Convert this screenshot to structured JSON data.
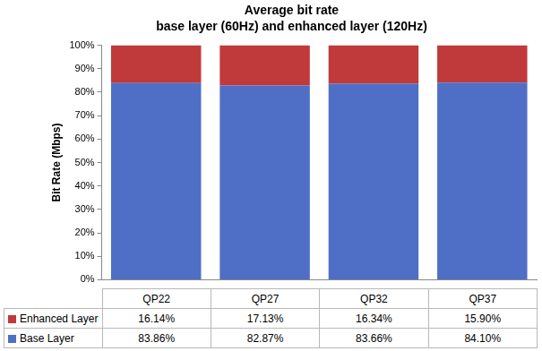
{
  "chart_data": {
    "type": "bar",
    "title": "Average bit rate",
    "subtitle": "base layer (60Hz) and enhanced layer (120Hz)",
    "y_label": "Bit Rate (Mbps)",
    "categories": [
      "QP22",
      "QP27",
      "QP32",
      "QP37"
    ],
    "stacked": true,
    "grid": false,
    "series": [
      {
        "name": "Enhanced Layer",
        "color": "#c0393b",
        "values": [
          16.14,
          17.13,
          16.34,
          15.9
        ],
        "value_labels": [
          "16.14%",
          "17.13%",
          "16.34%",
          "15.90%"
        ]
      },
      {
        "name": "Base Layer",
        "color": "#4f6fc6",
        "values": [
          83.86,
          82.87,
          83.66,
          84.1
        ],
        "value_labels": [
          "83.86%",
          "82.87%",
          "83.66%",
          "84.10%"
        ]
      }
    ],
    "ylim": [
      0,
      100
    ],
    "yticks": [
      {
        "value": 0,
        "label": "0%"
      },
      {
        "value": 10,
        "label": "10%"
      },
      {
        "value": 20,
        "label": "20%"
      },
      {
        "value": 30,
        "label": "30%"
      },
      {
        "value": 40,
        "label": "40%"
      },
      {
        "value": 50,
        "label": "50%"
      },
      {
        "value": 60,
        "label": "60%"
      },
      {
        "value": 70,
        "label": "70%"
      },
      {
        "value": 80,
        "label": "80%"
      },
      {
        "value": 90,
        "label": "90%"
      },
      {
        "value": 100,
        "label": "100%"
      }
    ]
  }
}
